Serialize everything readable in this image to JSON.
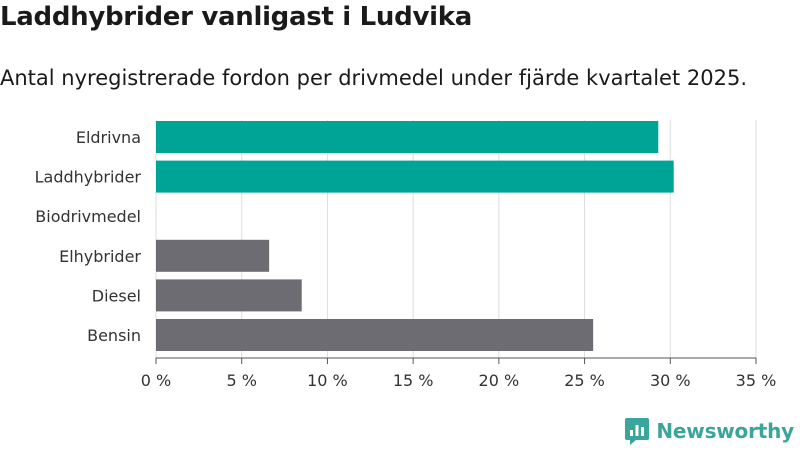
{
  "chart_data": {
    "type": "bar",
    "orientation": "horizontal",
    "title": "Laddhybrider vanligast i Ludvika",
    "subtitle": "Antal nyregistrerade fordon per drivmedel under fjärde kvartalet 2025.",
    "categories": [
      "Eldrivna",
      "Laddhybrider",
      "Biodrivmedel",
      "Elhybrider",
      "Diesel",
      "Bensin"
    ],
    "values": [
      29.3,
      30.2,
      0,
      6.6,
      8.5,
      25.5
    ],
    "colors": [
      "#00a497",
      "#00a497",
      "#6d6c72",
      "#6d6c72",
      "#6d6c72",
      "#6d6c72"
    ],
    "xlim": [
      0,
      35
    ],
    "xticks": [
      0,
      5,
      10,
      15,
      20,
      25,
      30,
      35
    ],
    "xtick_labels": [
      "0 %",
      "5 %",
      "10 %",
      "15 %",
      "20 %",
      "25 %",
      "30 %",
      "35 %"
    ],
    "xlabel": "",
    "ylabel": "",
    "grid": true
  },
  "brand": {
    "name": "Newsworthy",
    "color": "#3aa59b",
    "icon": "newsworthy-logo-icon"
  }
}
